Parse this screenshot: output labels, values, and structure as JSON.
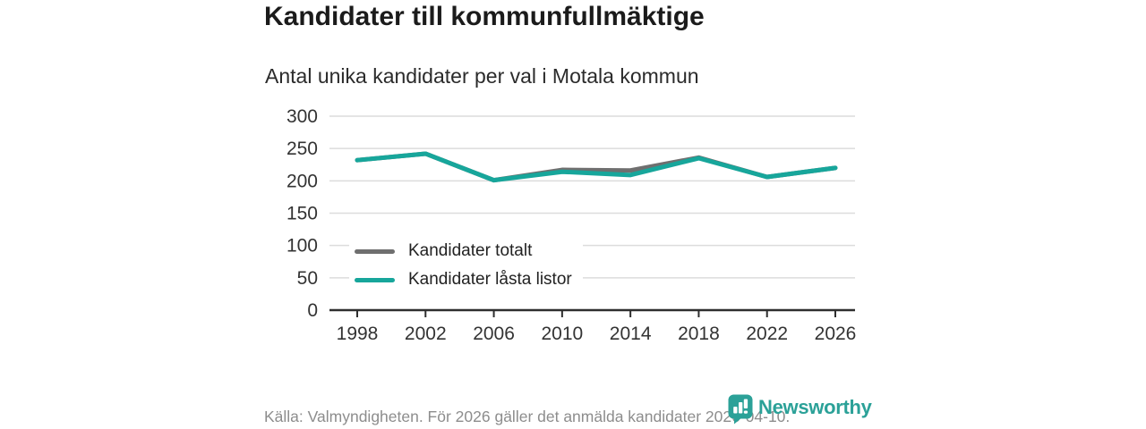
{
  "header": {
    "title": "Kandidater till kommunfullmäktige",
    "subtitle": "Antal unika kandidater per val i Motala kommun"
  },
  "colors": {
    "teal": "#17A69B",
    "gray": "#6F6F6F",
    "grid": "#DCDCDC",
    "axis": "#2E2E2E",
    "axis_text": "#333333",
    "footer_text": "#8D8D8D",
    "brand": "#2BA198"
  },
  "chart_data": {
    "type": "line",
    "x": [
      1998,
      2002,
      2006,
      2010,
      2014,
      2018,
      2022,
      2026
    ],
    "series": [
      {
        "name": "Kandidater totalt",
        "color_key": "gray",
        "values": [
          232,
          242,
          201,
          217,
          216,
          236,
          206,
          220
        ]
      },
      {
        "name": "Kandidater låsta listor",
        "color_key": "teal",
        "values": [
          232,
          242,
          201,
          214,
          209,
          235,
          206,
          220
        ]
      }
    ],
    "title": "Kandidater till kommunfullmäktige",
    "subtitle": "Antal unika kandidater per val i Motala kommun",
    "xlabel": "",
    "ylabel": "",
    "ylim": [
      0,
      300
    ],
    "yticks": [
      0,
      50,
      100,
      150,
      200,
      250,
      300
    ],
    "grid": "horizontal",
    "legend_position": "inside-lower-left",
    "line_width": 5
  },
  "footer": {
    "source": "Källa: Valmyndigheten. För 2026 gäller det anmälda kandidater 2026-04-10.",
    "brand_name": "Newsworthy"
  }
}
